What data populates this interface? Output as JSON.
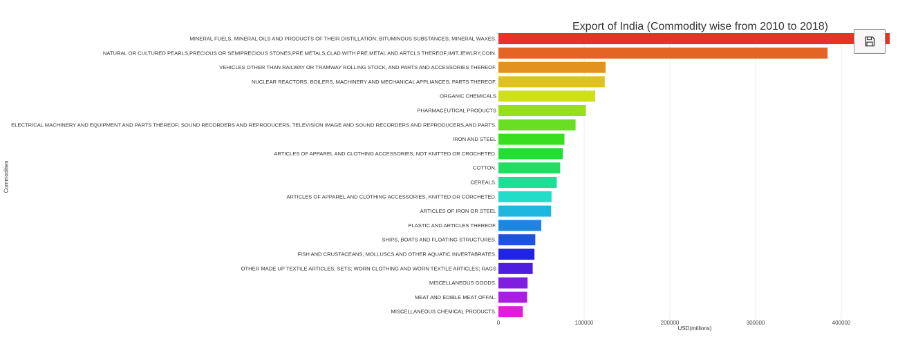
{
  "chart_data": {
    "type": "bar",
    "orientation": "horizontal",
    "title": "Export of India (Commodity wise from 2010 to 2018)",
    "xlabel": "USD(millions)",
    "ylabel": "Commodities",
    "xlim": [
      0,
      460000
    ],
    "x_ticks": [
      0,
      100000,
      200000,
      300000,
      400000
    ],
    "x_tick_labels": [
      "0",
      "100000",
      "200000",
      "300000",
      "400000"
    ],
    "grid": "vertical",
    "categories": [
      "MINERAL FUELS, MINERAL OILS AND PRODUCTS OF THEIR DISTILLATION; BITUMINOUS SUBSTANCES; MINERAL WAXES.",
      "NATURAL OR CULTURED PEARLS,PRECIOUS OR SEMIPRECIOUS STONES,PRE.METALS,CLAD WITH PRE.METAL AND ARTCLS THEREOF;IMIT.JEWLRY;COIN.",
      "VEHICLES OTHER THAN RAILWAY OR TRAMWAY ROLLING STOCK, AND PARTS AND ACCESSORIES THEREOF.",
      "NUCLEAR REACTORS, BOILERS, MACHINERY AND MECHANICAL APPLIANCES; PARTS THEREOF.",
      "ORGANIC CHEMICALS",
      "PHARMACEUTICAL PRODUCTS",
      "ELECTRICAL MACHINERY AND EQUIPMENT AND PARTS THEREOF; SOUND RECORDERS AND REPRODUCERS, TELEVISION IMAGE AND SOUND RECORDERS AND REPRODUCERS,AND PARTS.",
      "IRON AND STEEL",
      "ARTICLES OF APPAREL AND CLOTHING ACCESSORIES, NOT KNITTED OR CROCHETED.",
      "COTTON.",
      "CEREALS.",
      "ARTICLES OF APPAREL AND CLOTHING ACCESSORIES, KNITTED OR CORCHETED.",
      "ARTICLES OF IRON OR STEEL",
      "PLASTIC AND ARTICLES THEREOF.",
      "SHIPS, BOATS AND FLOATING STRUCTURES.",
      "FISH AND CRUSTACEANS, MOLLUSCS AND OTHER AQUATIC INVERTABRATES.",
      "OTHER MADE UP TEXTILE ARTICLES; SETS; WORN CLOTHING AND WORN TEXTILE ARTICLES; RAGS",
      "MISCELLANEOUS GOODS.",
      "MEAT AND EDIBLE MEAT OFFAL.",
      "MISCELLANEOUS CHEMICAL PRODUCTS."
    ],
    "values": [
      460000,
      384000,
      125000,
      124000,
      113000,
      102000,
      90000,
      77000,
      75000,
      72000,
      68000,
      62000,
      61500,
      50000,
      43000,
      42000,
      40000,
      34000,
      33500,
      28500
    ],
    "colors": [
      "#e53326",
      "#e46424",
      "#e2921f",
      "#dfc21c",
      "#cfdf1c",
      "#97df1e",
      "#68df22",
      "#39df1f",
      "#1edf32",
      "#1edf62",
      "#20de96",
      "#22dec8",
      "#1fb6df",
      "#1f86df",
      "#1e53df",
      "#1e24df",
      "#4d1edf",
      "#7f1edf",
      "#ac1edf",
      "#df1edb"
    ]
  },
  "toolbar": {
    "save_icon": "floppy-disk-icon"
  }
}
